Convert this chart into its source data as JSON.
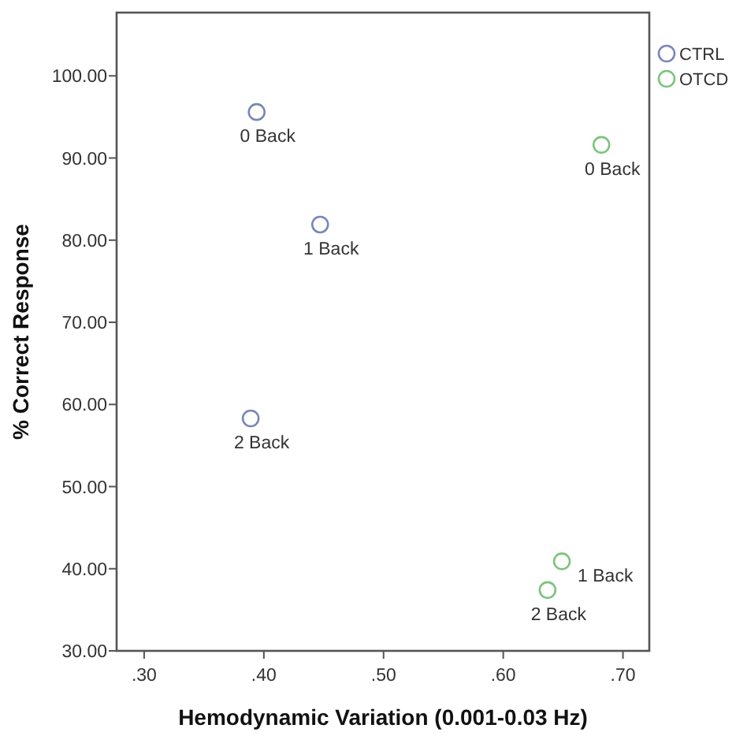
{
  "chart_data": {
    "type": "scatter",
    "xlabel": "Hemodynamic Variation (0.001-0.03 Hz)",
    "ylabel": "% Correct Response",
    "xlim": [
      0.277,
      0.722
    ],
    "ylim": [
      30,
      107.7
    ],
    "xticks": [
      {
        "value": 0.3,
        "label": ".30"
      },
      {
        "value": 0.4,
        "label": ".40"
      },
      {
        "value": 0.5,
        "label": ".50"
      },
      {
        "value": 0.6,
        "label": ".60"
      },
      {
        "value": 0.7,
        "label": ".70"
      }
    ],
    "yticks": [
      {
        "value": 30,
        "label": "30.00"
      },
      {
        "value": 40,
        "label": "40.00"
      },
      {
        "value": 50,
        "label": "50.00"
      },
      {
        "value": 60,
        "label": "60.00"
      },
      {
        "value": 70,
        "label": "70.00"
      },
      {
        "value": 80,
        "label": "80.00"
      },
      {
        "value": 90,
        "label": "90.00"
      },
      {
        "value": 100,
        "label": "100.00"
      }
    ],
    "series": [
      {
        "name": "CTRL",
        "color": "#7b86b8",
        "x": [
          0.394,
          0.447,
          0.389
        ],
        "values": [
          95.6,
          81.9,
          58.3
        ]
      },
      {
        "name": "OTCD",
        "color": "#7cc47c",
        "x": [
          0.682,
          0.649,
          0.637
        ],
        "values": [
          91.6,
          40.9,
          37.4
        ]
      }
    ],
    "annotations": [
      {
        "text": "0 Back",
        "x": 0.394,
        "y": 95.6
      },
      {
        "text": "1 Back",
        "x": 0.447,
        "y": 81.9
      },
      {
        "text": "2 Back",
        "x": 0.389,
        "y": 58.3
      },
      {
        "text": "0 Back",
        "x": 0.682,
        "y": 91.6
      },
      {
        "text": "1 Back",
        "x": 0.649,
        "y": 40.9
      },
      {
        "text": "2 Back",
        "x": 0.637,
        "y": 37.4
      }
    ],
    "marker": "circle",
    "grid": false,
    "legend": "top right"
  }
}
